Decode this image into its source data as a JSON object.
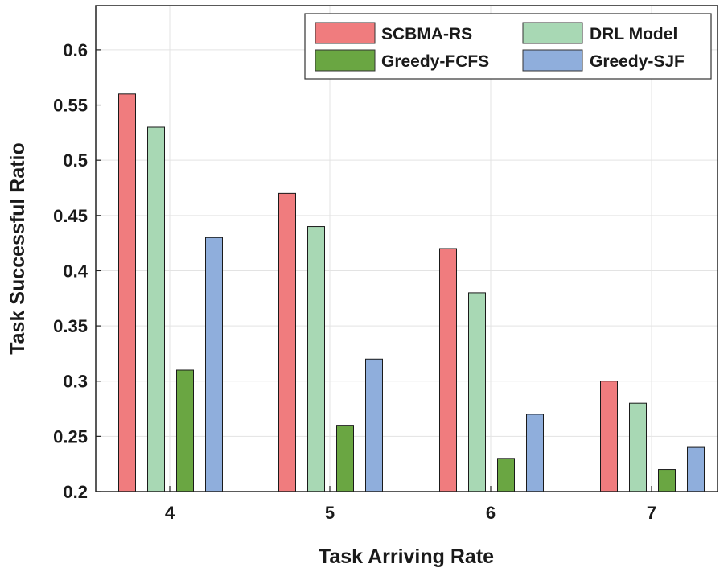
{
  "chart_data": {
    "type": "bar",
    "title": "",
    "xlabel": "Task Arriving Rate",
    "ylabel": "Task Successful Ratio",
    "categories": [
      "4",
      "5",
      "6",
      "7"
    ],
    "ylim": [
      0.2,
      0.64
    ],
    "yticks": [
      0.2,
      0.25,
      0.3,
      0.35,
      0.4,
      0.45,
      0.5,
      0.55,
      0.6
    ],
    "ytick_labels": [
      "0.2",
      "0.25",
      "0.3",
      "0.35",
      "0.4",
      "0.45",
      "0.5",
      "0.55",
      "0.6"
    ],
    "grid": true,
    "legend_position": "top-right",
    "series": [
      {
        "name": "SCBMA-RS",
        "color": "#F07C7E",
        "values": [
          0.56,
          0.47,
          0.42,
          0.3
        ]
      },
      {
        "name": "DRL Model",
        "color": "#A8D8B4",
        "values": [
          0.53,
          0.44,
          0.38,
          0.28
        ]
      },
      {
        "name": "Greedy-FCFS",
        "color": "#6AA642",
        "values": [
          0.31,
          0.26,
          0.23,
          0.22
        ]
      },
      {
        "name": "Greedy-SJF",
        "color": "#8FAEDC",
        "values": [
          0.43,
          0.32,
          0.27,
          0.24
        ]
      }
    ]
  }
}
